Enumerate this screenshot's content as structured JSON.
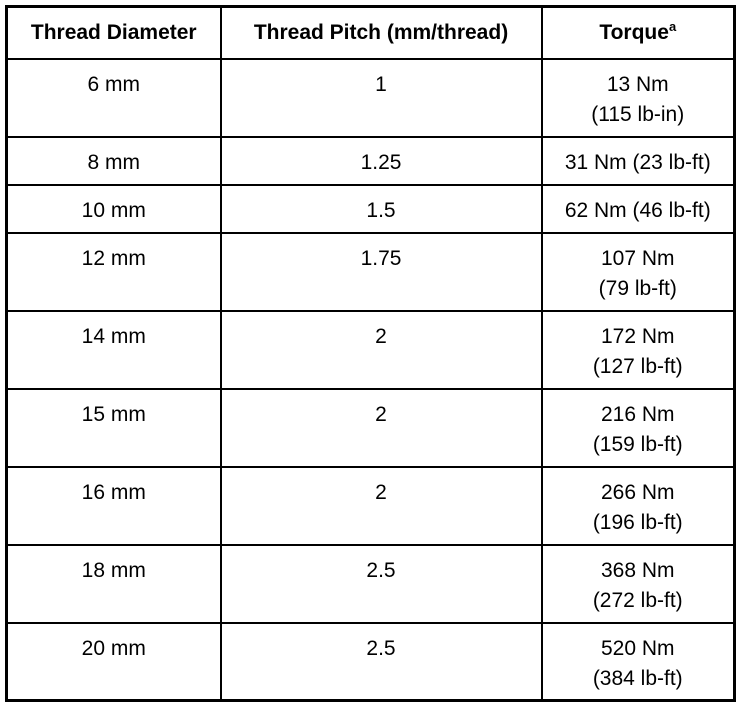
{
  "table": {
    "headers": [
      {
        "text": "Thread Diameter"
      },
      {
        "text": "Thread Pitch (mm/thread)"
      },
      {
        "text": "Torque",
        "sup": "a"
      }
    ],
    "rows": [
      {
        "diameter": "6 mm",
        "pitch": "1",
        "torque": [
          "13 Nm",
          "(115 lb-in)"
        ]
      },
      {
        "diameter": "8 mm",
        "pitch": "1.25",
        "torque": [
          "31 Nm (23 lb-ft)"
        ]
      },
      {
        "diameter": "10 mm",
        "pitch": "1.5",
        "torque": [
          "62 Nm (46 lb-ft)"
        ]
      },
      {
        "diameter": "12 mm",
        "pitch": "1.75",
        "torque": [
          "107 Nm",
          "(79 lb-ft)"
        ]
      },
      {
        "diameter": "14 mm",
        "pitch": "2",
        "torque": [
          "172 Nm",
          "(127 lb-ft)"
        ]
      },
      {
        "diameter": "15 mm",
        "pitch": "2",
        "torque": [
          "216 Nm",
          "(159 lb-ft)"
        ]
      },
      {
        "diameter": "16 mm",
        "pitch": "2",
        "torque": [
          "266 Nm",
          "(196 lb-ft)"
        ]
      },
      {
        "diameter": "18 mm",
        "pitch": "2.5",
        "torque": [
          "368 Nm",
          "(272 lb-ft)"
        ]
      },
      {
        "diameter": "20 mm",
        "pitch": "2.5",
        "torque": [
          "520 Nm",
          "(384 lb-ft)"
        ]
      }
    ]
  }
}
